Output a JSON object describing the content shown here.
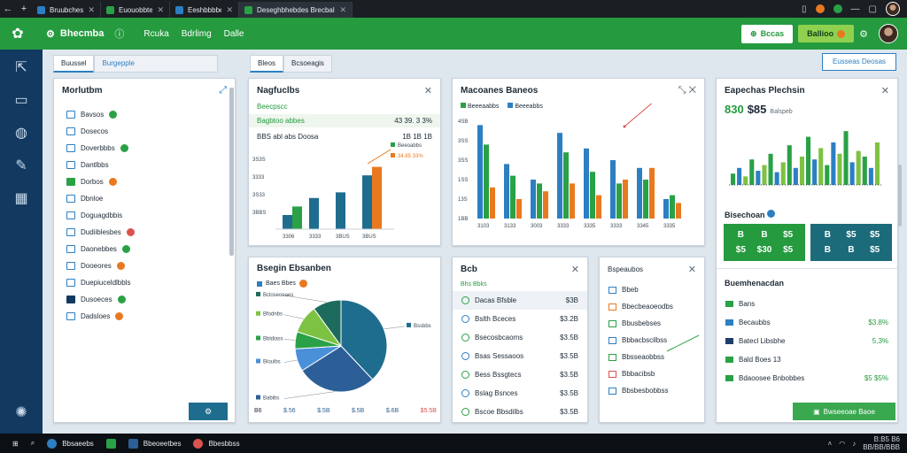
{
  "browser": {
    "tabs": [
      {
        "label": "Bruubches",
        "color": "#2c7fc2"
      },
      {
        "label": "Euouobbtes aly",
        "color": "#2aa146"
      },
      {
        "label": "Eeshbbbbe",
        "color": "#2c7fc2"
      },
      {
        "label": "Deseghbhebdes Brecbales",
        "color": "#2aa146"
      }
    ]
  },
  "header": {
    "brand": "Bhecmba",
    "nav": [
      "Rcuka",
      "Bdrlimg",
      "Dalle"
    ],
    "btn_white": "Bccas",
    "btn_lime": "Ballioo"
  },
  "left_panel": {
    "tabs": [
      "Buussel",
      "Burgepple"
    ],
    "title": "Morlutbm",
    "items": [
      {
        "label": "Bavsos",
        "badge": "g"
      },
      {
        "label": "Dosecos",
        "badge": ""
      },
      {
        "label": "Doverbbbs",
        "badge": "g"
      },
      {
        "label": "Dantlbbs",
        "badge": ""
      },
      {
        "label": "Dorbos",
        "badge": "o"
      },
      {
        "label": "Dbnloe",
        "badge": ""
      },
      {
        "label": "Doguagdbbis",
        "badge": ""
      },
      {
        "label": "Dudiiblesbes",
        "badge": "r"
      },
      {
        "label": "Daonebbes",
        "badge": "g"
      },
      {
        "label": "Dooeores",
        "badge": "o"
      },
      {
        "label": "Duepiuceldlbbls",
        "badge": ""
      },
      {
        "label": "Dusoeces",
        "badge": "g"
      },
      {
        "label": "Dadsloes",
        "badge": "o"
      }
    ]
  },
  "center_tabs": [
    "Bleos",
    "Bcsoeagis"
  ],
  "right_top_button": "Eusseas Deosas",
  "p1": {
    "title": "Nagfuclbs",
    "sub1_left": "Beecpscc",
    "sub1_left_color": "#259a3f",
    "sub2_left": "Bagbtoo abbes",
    "sub2_right": "43 39. 3 3%",
    "sub3_left": "BBS abl abs Doosa",
    "sub3_right": "1B 1B 1B",
    "legend": [
      {
        "label": "Beeoabbs",
        "color": "#2aa146"
      },
      {
        "label": "34.85 33%",
        "color": "#e9791f"
      }
    ]
  },
  "p2": {
    "title": "Macoanes Baneos",
    "legend": [
      {
        "label": "Beeeaabbs",
        "color": "#2aa146"
      },
      {
        "label": "Beeeabbs",
        "color": "#2c7fc2"
      }
    ]
  },
  "p3": {
    "title": "Eapechas Plechsin",
    "kpi_a": "830",
    "kpi_b": "$85",
    "kpi_note": "Balspeb",
    "section": "Bisechoan",
    "tile1": [
      "B",
      "B",
      "$5"
    ],
    "tile1b": [
      "$5",
      "$30",
      "$5"
    ],
    "tile2": [
      "B",
      "$5",
      "$5"
    ],
    "tile2b": [
      "B",
      "B",
      "$5"
    ],
    "sub_title": "Buemhenacdan",
    "rows": [
      {
        "label": "Bans",
        "value": "",
        "color": "#2aa146"
      },
      {
        "label": "Becaubbs",
        "value": "$3.8%",
        "color": "#2c7fc2"
      },
      {
        "label": "Batecl Libsbhe",
        "value": "5,3%",
        "color": "#1f3f6b"
      },
      {
        "label": "Bald Boes 13",
        "value": "",
        "color": "#2aa146"
      },
      {
        "label": "Bdaoosee Bnbobbes",
        "value": "$5 $5%",
        "color": "#2aa146"
      }
    ],
    "action": "Bwseeoae Baoe"
  },
  "p4": {
    "title": "Bsegin Ebsanben",
    "legend": "Baes Bbes",
    "slices": [
      {
        "label": "Bssbbs",
        "value": 38,
        "color": "#1f6d8e"
      },
      {
        "label": "Babibs",
        "value": 28,
        "color": "#2c5f97"
      },
      {
        "label": "Bloulbs",
        "value": 8,
        "color": "#4a90d9"
      },
      {
        "label": "Bbldiass",
        "value": 6,
        "color": "#2aa146"
      },
      {
        "label": "Bfodnbs",
        "value": 10,
        "color": "#7dc242"
      },
      {
        "label": "Bcloseoeaes",
        "value": 10,
        "color": "#1c6b5c"
      }
    ],
    "foot": [
      "B6",
      "$.56",
      "$.5B",
      "$.5B",
      "$.6B",
      "$5.5B"
    ]
  },
  "p5": {
    "title": "Bcb",
    "sub": "Bhs Bbks",
    "rows": [
      {
        "label": "Dacas Bfsble",
        "value": "$3B"
      },
      {
        "label": "Bslth Bceces",
        "value": "$3.2B"
      },
      {
        "label": "Bsecosbcaoms",
        "value": "$3.5B"
      },
      {
        "label": "Bsas Sessaoos",
        "value": "$3.5B"
      },
      {
        "label": "Bess Bssgtecs",
        "value": "$3.5B"
      },
      {
        "label": "Bslag Bsnces",
        "value": "$3.5B"
      },
      {
        "label": "Bscoe Bbsdilbs",
        "value": "$3.5B"
      }
    ]
  },
  "p6": {
    "title": "Bspeaubos",
    "rows": [
      "Bbeb",
      "Bbecbeaoeodbs",
      "Bbusbebses",
      "Bbbacbscilbss",
      "Bbsseaobbss",
      "Bbbacibsb",
      "Bbsbesbobbss"
    ]
  },
  "chart_data": [
    {
      "type": "bar",
      "categories": [
        "3306",
        "3333",
        "3BUS",
        "3BUS"
      ],
      "yticks": [
        "3BBS",
        "3S33",
        "3333",
        "3S3S"
      ],
      "series": [
        {
          "values": [
            5,
            11,
            13,
            19
          ],
          "color": "#1f6d8e"
        },
        {
          "values": [
            8,
            0,
            0,
            0
          ],
          "color": "#2aa146"
        },
        {
          "values": [
            0,
            0,
            0,
            22
          ],
          "color": "#e9791f"
        }
      ]
    },
    {
      "type": "bar",
      "categories": [
        "3103",
        "3133",
        "3003",
        "3333",
        "3335",
        "3333",
        "3345",
        "3335"
      ],
      "yticks": [
        "1BB",
        "13S",
        "1SS",
        "3SS",
        "3SS",
        "4SB"
      ],
      "series": [
        {
          "values": [
            48,
            28,
            20,
            44,
            36,
            30,
            26,
            10
          ],
          "color": "#2c7fc2"
        },
        {
          "values": [
            38,
            22,
            18,
            34,
            24,
            18,
            20,
            12
          ],
          "color": "#2aa146"
        },
        {
          "values": [
            16,
            10,
            14,
            18,
            12,
            20,
            26,
            8
          ],
          "color": "#e9791f"
        }
      ]
    },
    {
      "type": "bar",
      "series": [
        {
          "values": [
            8,
            12,
            6,
            18,
            10,
            14,
            22,
            9,
            16,
            28,
            12,
            20,
            34,
            18,
            26,
            14,
            30,
            22,
            38,
            16,
            24,
            20,
            12,
            30
          ],
          "colors": [
            "#2aa146",
            "#2c7fc2",
            "#7dc242"
          ]
        }
      ]
    }
  ]
}
